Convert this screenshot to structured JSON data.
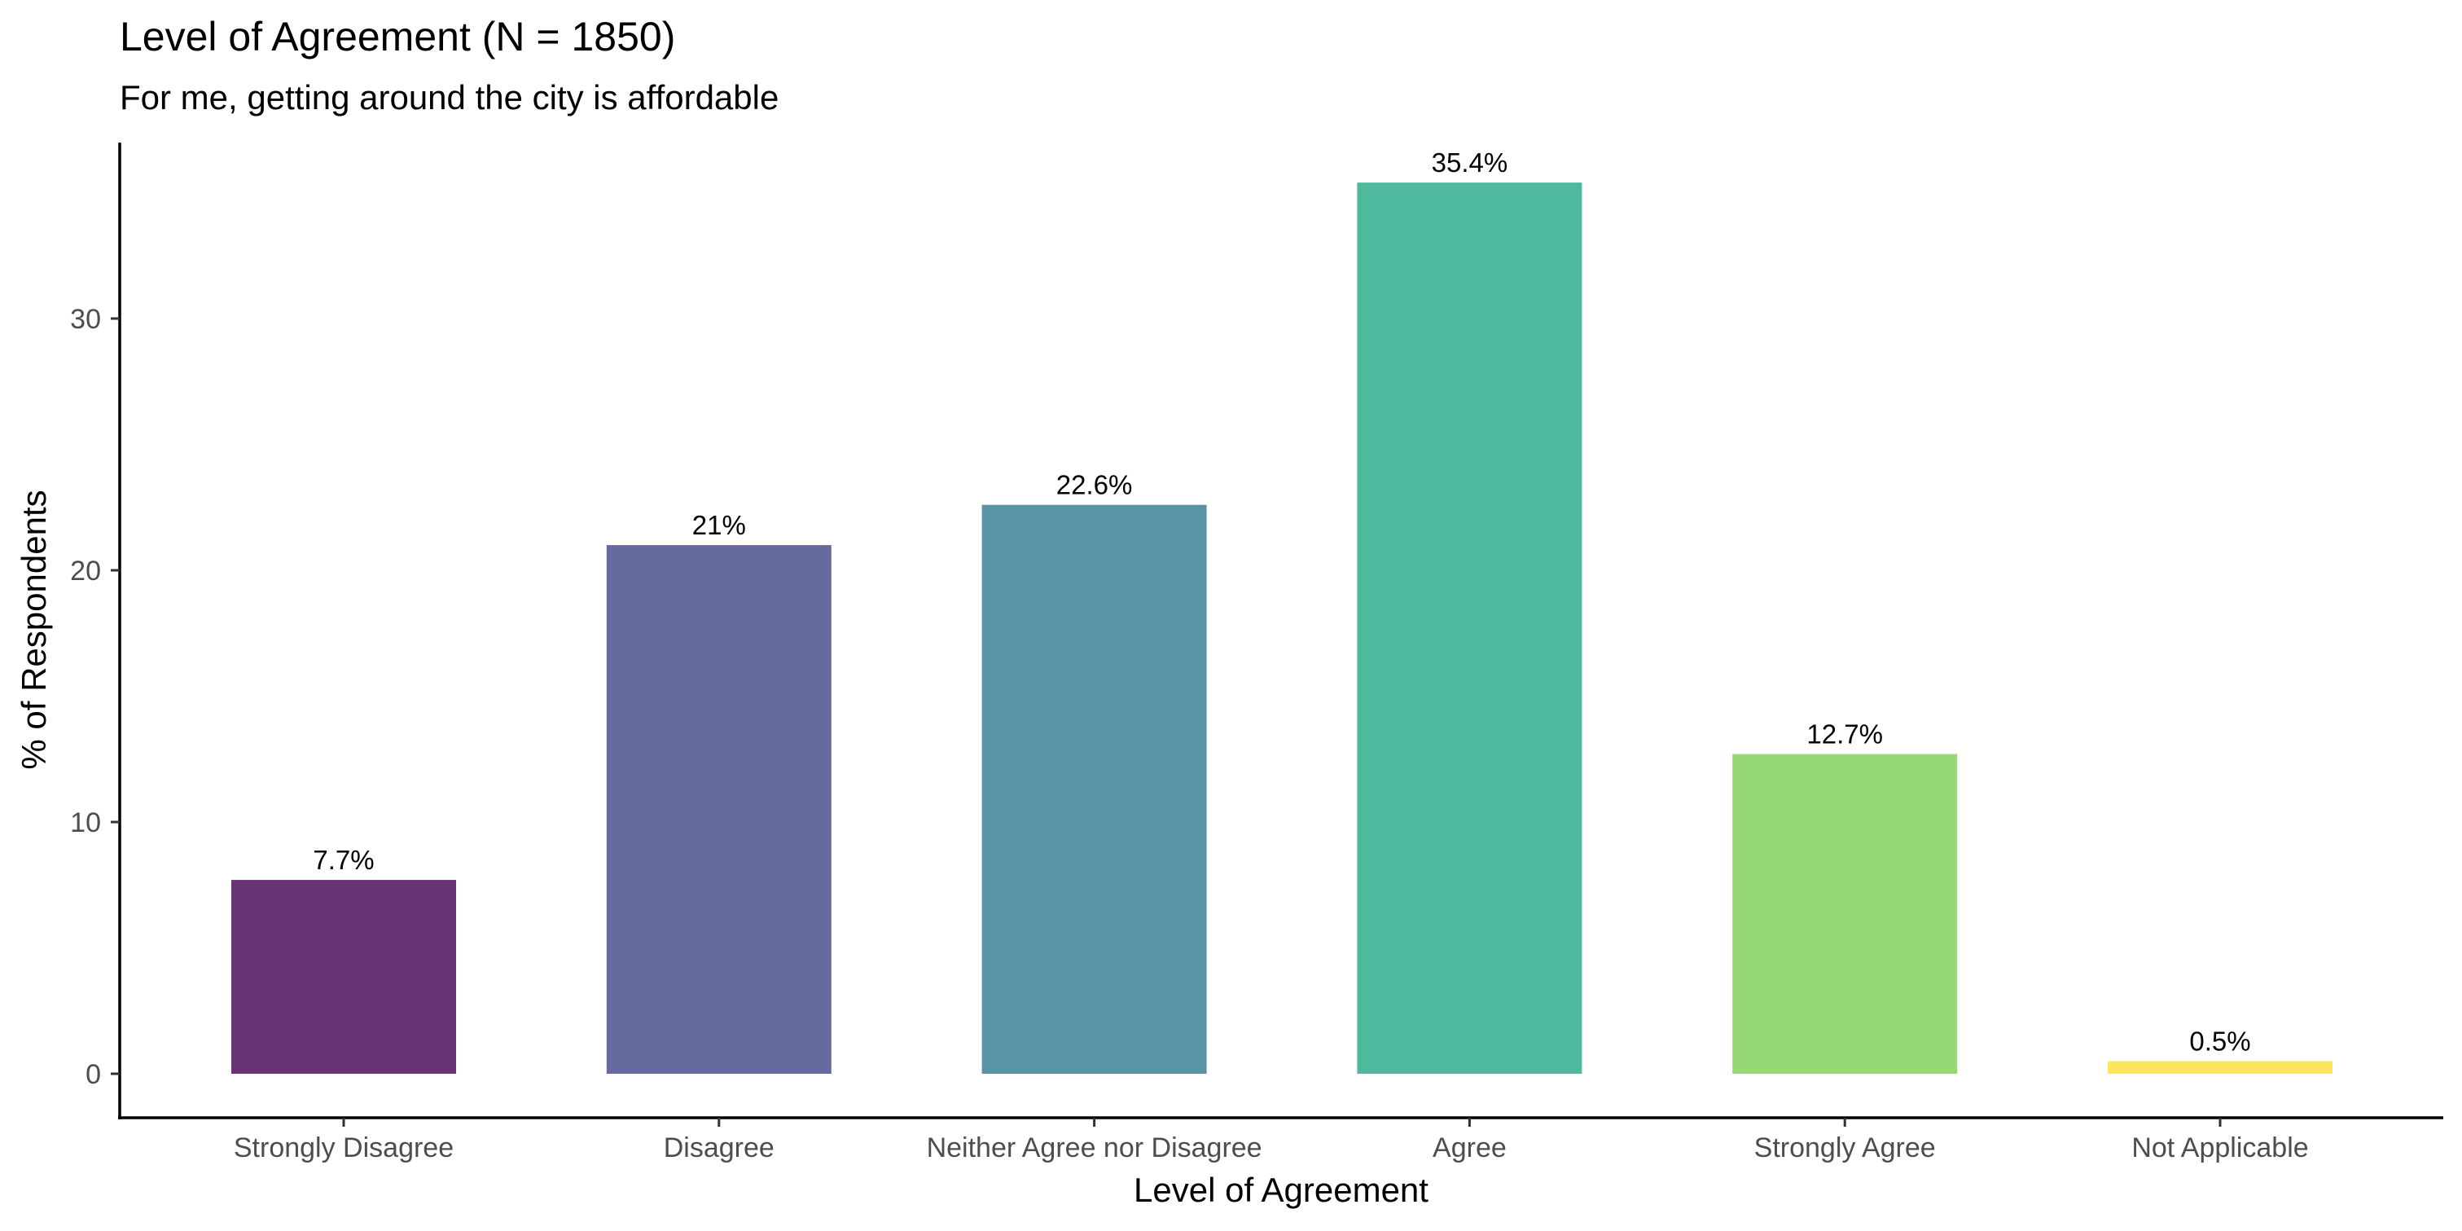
{
  "chart_data": {
    "type": "bar",
    "title": "Level of Agreement (N = 1850)",
    "subtitle": "For me, getting around the city is affordable",
    "xlabel": "Level of Agreement",
    "ylabel": "% of Respondents",
    "categories": [
      "Strongly Disagree",
      "Disagree",
      "Neither Agree nor Disagree",
      "Agree",
      "Strongly Agree",
      "Not Applicable"
    ],
    "values": [
      7.7,
      21,
      22.6,
      35.4,
      12.7,
      0.5
    ],
    "data_labels": [
      "7.7%",
      "21%",
      "22.6%",
      "35.4%",
      "12.7%",
      "0.5%"
    ],
    "colors": [
      "#693476",
      "#676A9F",
      "#5993A5",
      "#4EB99D",
      "#96D874",
      "#FDE65C"
    ],
    "ylim": [
      0,
      37
    ],
    "yticks": [
      0,
      10,
      20,
      30
    ],
    "grid": false,
    "legend": "none"
  }
}
